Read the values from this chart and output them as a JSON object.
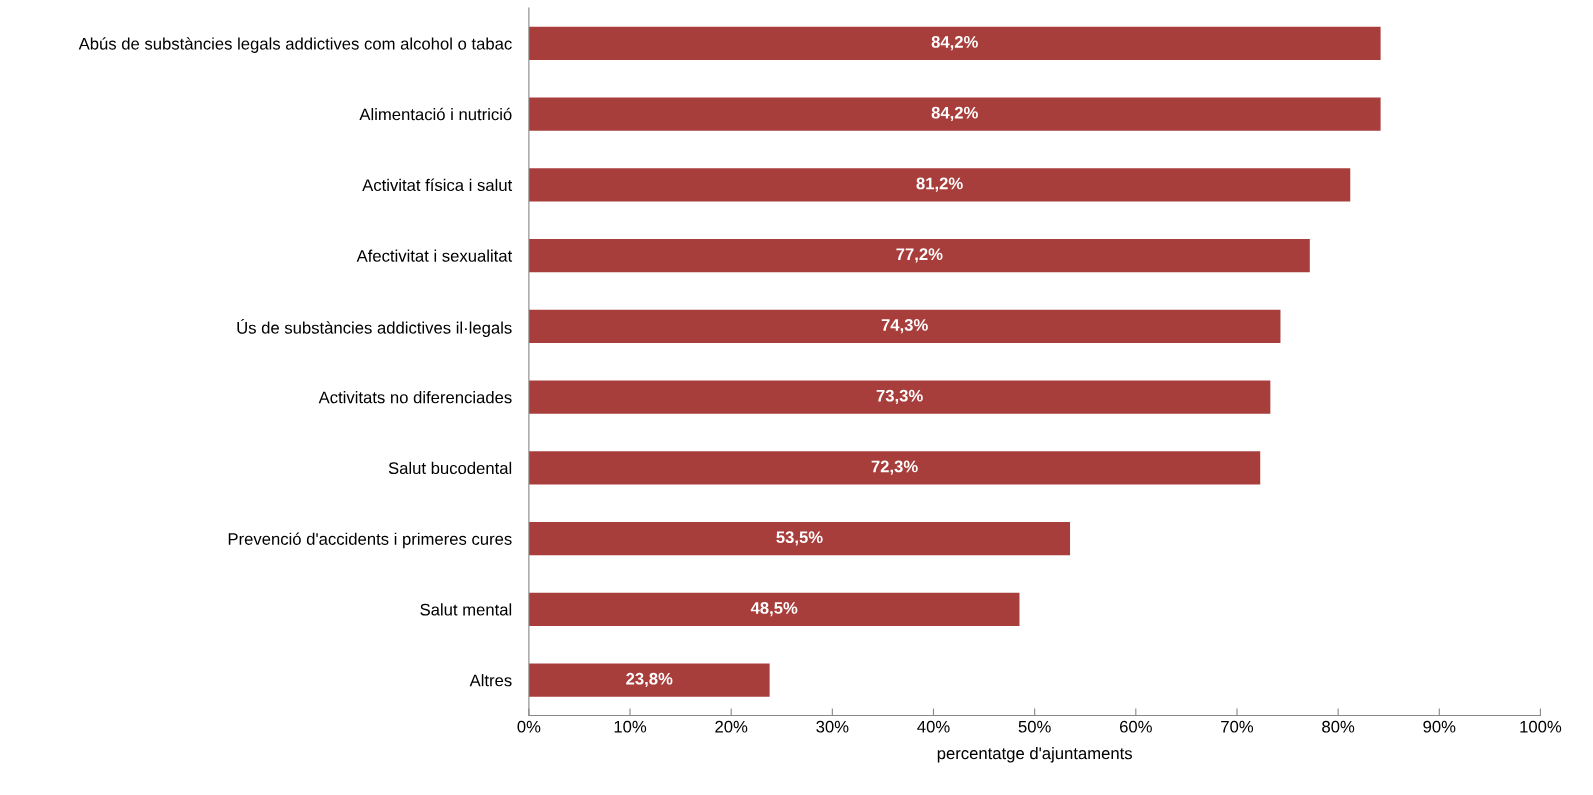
{
  "chart_data": {
    "type": "bar",
    "orientation": "horizontal",
    "xlabel": "percentatge d'ajuntaments",
    "categories": [
      "Abús de substàncies legals addictives com alcohol o tabac",
      "Alimentació i nutrició",
      "Activitat física i salut",
      "Afectivitat i sexualitat",
      "Ús de substàncies addictives il·legals",
      "Activitats no diferenciades",
      "Salut bucodental",
      "Prevenció d'accidents i primeres cures",
      "Salut mental",
      "Altres"
    ],
    "values": [
      84.2,
      84.2,
      81.2,
      77.2,
      74.3,
      73.3,
      72.3,
      53.5,
      48.5,
      23.8
    ],
    "value_labels": [
      "84,2%",
      "84,2%",
      "81,2%",
      "77,2%",
      "74,3%",
      "73,3%",
      "72,3%",
      "53,5%",
      "48,5%",
      "23,8%"
    ],
    "color": "#a83e3c",
    "xlim": [
      0,
      100
    ],
    "xticks": [
      {
        "value": 0,
        "label": "0%"
      },
      {
        "value": 10,
        "label": "10%"
      },
      {
        "value": 20,
        "label": "20%"
      },
      {
        "value": 30,
        "label": "30%"
      },
      {
        "value": 40,
        "label": "40%"
      },
      {
        "value": 50,
        "label": "50%"
      },
      {
        "value": 60,
        "label": "60%"
      },
      {
        "value": 70,
        "label": "70%"
      },
      {
        "value": 80,
        "label": "80%"
      },
      {
        "value": 90,
        "label": "90%"
      },
      {
        "value": 100,
        "label": "100%"
      }
    ],
    "grid": false,
    "legend": false
  }
}
